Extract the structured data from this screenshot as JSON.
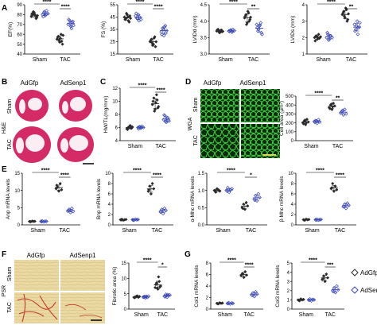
{
  "figure": {
    "colors": {
      "adgfp": "#2b2b2b",
      "adsenp1": "#3b48b8",
      "he_stain": "#d6336c",
      "wga_stain": "#2ca82c",
      "psr_bg": "#e9d9a6",
      "psr_fiber": "#c0392b"
    },
    "legend": [
      {
        "label": "AdGfp",
        "color": "#2b2b2b"
      },
      {
        "label": "AdSenp1",
        "color": "#3b48b8"
      }
    ],
    "panels": {
      "A": "A",
      "B": "B",
      "C": "C",
      "D": "D",
      "E": "E",
      "F": "F",
      "G": "G"
    },
    "micrographs": {
      "col_gfp": "AdGfp",
      "col_senp1": "AdSenp1",
      "row_sham": "Sham",
      "row_tac": "TAC",
      "stain_he": "H&E",
      "stain_wga": "WGA",
      "stain_psr": "PSR"
    },
    "group_labels": [
      "Sham",
      "TAC"
    ]
  },
  "chart_data": [
    {
      "id": "ef",
      "panel": "A",
      "type": "scatter",
      "ylabel": "EF(%)",
      "yticks": [
        "40",
        "50",
        "60",
        "70",
        "80",
        "90"
      ],
      "ylim": [
        40,
        90
      ],
      "groups": [
        "Sham-AdGfp",
        "Sham-AdSenp1",
        "TAC-AdGfp",
        "TAC-AdSenp1"
      ],
      "values": [
        [
          78,
          80,
          82,
          79,
          77,
          81,
          83,
          80,
          76,
          79
        ],
        [
          80,
          82,
          79,
          84,
          81,
          78,
          83,
          80
        ],
        [
          55,
          58,
          52,
          60,
          50,
          57,
          54,
          56,
          53,
          59
        ],
        [
          70,
          74,
          68,
          72,
          69,
          75,
          71,
          66,
          73
        ]
      ],
      "sig": [
        "****",
        "****"
      ]
    },
    {
      "id": "fs",
      "panel": "A",
      "type": "scatter",
      "ylabel": "FS (%)",
      "yticks": [
        "15",
        "25",
        "35",
        "45",
        "55"
      ],
      "ylim": [
        15,
        55
      ],
      "groups": [
        "Sham-AdGfp",
        "Sham-AdSenp1",
        "TAC-AdGfp",
        "TAC-AdSenp1"
      ],
      "values": [
        [
          45,
          44,
          47,
          42,
          46,
          43,
          48,
          45,
          41,
          44
        ],
        [
          46,
          44,
          47,
          45,
          43,
          48,
          44,
          42
        ],
        [
          25,
          27,
          22,
          28,
          21,
          26,
          24,
          23,
          29,
          25
        ],
        [
          33,
          36,
          30,
          38,
          34,
          31,
          35,
          37,
          32
        ]
      ],
      "sig": [
        "****",
        "****"
      ]
    },
    {
      "id": "lvidd",
      "panel": "A",
      "type": "scatter",
      "ylabel": "LVIDd (mm)",
      "yticks": [
        "3.0",
        "3.5",
        "4.0",
        "4.5"
      ],
      "ylim": [
        3.0,
        4.5
      ],
      "groups": [
        "Sham-AdGfp",
        "Sham-AdSenp1",
        "TAC-AdGfp",
        "TAC-AdSenp1"
      ],
      "values": [
        [
          3.7,
          3.75,
          3.65,
          3.72,
          3.68,
          3.74,
          3.71,
          3.66,
          3.73,
          3.69
        ],
        [
          3.7,
          3.72,
          3.68,
          3.75,
          3.71,
          3.69,
          3.73,
          3.67
        ],
        [
          4.1,
          4.2,
          3.95,
          4.25,
          4.05,
          4.15,
          3.9,
          4.3,
          4.0,
          4.12
        ],
        [
          3.9,
          3.7,
          3.85,
          3.95,
          3.6,
          3.8,
          3.75,
          3.88,
          3.65
        ]
      ],
      "sig": [
        "****",
        "**"
      ]
    },
    {
      "id": "lvids",
      "panel": "A",
      "type": "scatter",
      "ylabel": "LVIDs (mm)",
      "yticks": [
        "1",
        "2",
        "3",
        "4"
      ],
      "ylim": [
        1,
        4
      ],
      "groups": [
        "Sham-AdGfp",
        "Sham-AdSenp1",
        "TAC-AdGfp",
        "TAC-AdSenp1"
      ],
      "values": [
        [
          2.0,
          2.1,
          1.9,
          2.2,
          2.0,
          1.8,
          2.1,
          2.0,
          1.95,
          2.05
        ],
        [
          2.0,
          2.2,
          1.9,
          2.1,
          2.0,
          2.3,
          1.85,
          2.1
        ],
        [
          3.4,
          3.6,
          3.2,
          3.7,
          3.1,
          3.5,
          3.3,
          3.8,
          3.0,
          3.45
        ],
        [
          2.8,
          2.5,
          3.0,
          2.6,
          2.9,
          2.4,
          2.7,
          2.2,
          2.65
        ]
      ],
      "sig": [
        "****",
        "**"
      ]
    },
    {
      "id": "hwtl",
      "panel": "C",
      "type": "scatter",
      "ylabel": "HW/TL(mg/mm)",
      "yticks": [
        "4",
        "6",
        "8",
        "10",
        "12"
      ],
      "ylim": [
        4,
        12
      ],
      "groups": [
        "Sham-AdGfp",
        "Sham-AdSenp1",
        "TAC-AdGfp",
        "TAC-AdSenp1"
      ],
      "values": [
        [
          5.8,
          6.0,
          6.2,
          5.9,
          6.1,
          5.7,
          6.0,
          6.3,
          5.9
        ],
        [
          6.0,
          6.1,
          5.9,
          6.2,
          6.0,
          5.8,
          6.1,
          6.0
        ],
        [
          9.5,
          10.5,
          8.8,
          11.0,
          9.0,
          10.0,
          8.5,
          9.8,
          10.2,
          9.2
        ],
        [
          7.2,
          7.8,
          6.8,
          7.5,
          7.0,
          7.9,
          6.9,
          7.4,
          7.1
        ]
      ],
      "sig": [
        "****",
        "****"
      ]
    },
    {
      "id": "cellarea",
      "panel": "D",
      "type": "scatter",
      "ylabel": "Cell area (µm²)",
      "yticks": [
        "0",
        "100",
        "200",
        "300",
        "400",
        "500"
      ],
      "ylim": [
        0,
        500
      ],
      "groups": [
        "Sham-AdGfp",
        "Sham-AdSenp1",
        "TAC-AdGfp",
        "TAC-AdSenp1"
      ],
      "values": [
        [
          200,
          220,
          180,
          240,
          210,
          190,
          230,
          205
        ],
        [
          215,
          225,
          195,
          235,
          210,
          205,
          220
        ],
        [
          370,
          400,
          350,
          420,
          390,
          360,
          410,
          380
        ],
        [
          310,
          330,
          290,
          350,
          300,
          320,
          340
        ]
      ],
      "sig": [
        "****",
        "**"
      ]
    },
    {
      "id": "anp",
      "panel": "E",
      "type": "scatter",
      "ylabel": "Anp mRNA levels",
      "yticks": [
        "0",
        "5",
        "10",
        "15"
      ],
      "ylim": [
        0,
        15
      ],
      "groups": [
        "Sham-AdGfp",
        "Sham-AdSenp1",
        "TAC-AdGfp",
        "TAC-AdSenp1"
      ],
      "values": [
        [
          1.0,
          0.9,
          1.1,
          1.0,
          1.05,
          0.95
        ],
        [
          1.0,
          1.1,
          0.9,
          1.05,
          1.0,
          0.95
        ],
        [
          10.5,
          11.0,
          9.8,
          12.0,
          10.2,
          11.5
        ],
        [
          4.0,
          4.5,
          3.6,
          4.8,
          3.9,
          4.2
        ]
      ],
      "sig": [
        "****",
        "****"
      ]
    },
    {
      "id": "bnp",
      "panel": "E",
      "type": "scatter",
      "ylabel": "Bnp mRNA levels",
      "yticks": [
        "0",
        "2",
        "4",
        "6",
        "8",
        "10"
      ],
      "ylim": [
        0,
        10
      ],
      "groups": [
        "Sham-AdGfp",
        "Sham-AdSenp1",
        "TAC-AdGfp",
        "TAC-AdSenp1"
      ],
      "values": [
        [
          1.0,
          1.1,
          0.9,
          1.0,
          1.05,
          0.95
        ],
        [
          1.0,
          0.9,
          1.1,
          1.0,
          1.05,
          0.95
        ],
        [
          6.5,
          7.5,
          6.0,
          8.0,
          7.0,
          6.8
        ],
        [
          2.5,
          3.0,
          2.2,
          3.2,
          2.8,
          2.6
        ]
      ],
      "sig": [
        "****",
        "****"
      ]
    },
    {
      "id": "amhc",
      "panel": "E",
      "type": "scatter",
      "ylabel": "α-Mhc mRNA levels",
      "yticks": [
        "0.0",
        "0.5",
        "1.0",
        "1.5"
      ],
      "ylim": [
        0,
        1.5
      ],
      "groups": [
        "Sham-AdGfp",
        "Sham-AdSenp1",
        "TAC-AdGfp",
        "TAC-AdSenp1"
      ],
      "values": [
        [
          1.0,
          0.95,
          1.05,
          1.02,
          0.98,
          1.0
        ],
        [
          1.0,
          1.08,
          0.95,
          1.02,
          1.05,
          0.98
        ],
        [
          0.5,
          0.6,
          0.45,
          0.65,
          0.55,
          0.48
        ],
        [
          0.75,
          0.85,
          0.7,
          0.9,
          0.8,
          0.72
        ]
      ],
      "sig": [
        "****",
        "*"
      ]
    },
    {
      "id": "bmhc",
      "panel": "E",
      "type": "scatter",
      "ylabel": "β-Mhc mRNA levels",
      "yticks": [
        "0",
        "2",
        "4",
        "6",
        "8",
        "10"
      ],
      "ylim": [
        0,
        10
      ],
      "groups": [
        "Sham-AdGfp",
        "Sham-AdSenp1",
        "TAC-AdGfp",
        "TAC-AdSenp1"
      ],
      "values": [
        [
          1.0,
          0.9,
          1.1,
          1.0,
          1.05,
          0.95
        ],
        [
          1.0,
          1.1,
          0.9,
          1.0,
          1.05,
          0.95
        ],
        [
          7.0,
          8.0,
          6.5,
          7.5,
          6.8,
          7.2
        ],
        [
          3.5,
          4.0,
          3.2,
          4.2,
          3.8,
          3.6
        ]
      ],
      "sig": [
        "****",
        "****"
      ]
    },
    {
      "id": "fibrotic",
      "panel": "F",
      "type": "scatter",
      "ylabel": "Fibrotic area (%)",
      "yticks": [
        "0",
        "5",
        "10",
        "15"
      ],
      "ylim": [
        0,
        15
      ],
      "groups": [
        "Sham-AdGfp",
        "Sham-AdSenp1",
        "TAC-AdGfp",
        "TAC-AdSenp1"
      ],
      "values": [
        [
          3.8,
          4.0,
          4.2,
          3.9,
          4.1,
          3.7,
          4.0,
          4.3,
          3.9
        ],
        [
          3.9,
          4.1,
          4.0,
          3.8,
          4.2,
          4.0,
          3.7,
          4.1
        ],
        [
          7.0,
          8.5,
          6.5,
          9.0,
          7.5,
          8.0,
          6.8,
          10.5,
          7.2
        ],
        [
          4.2,
          4.8,
          3.9,
          4.5,
          4.6,
          4.0,
          4.4,
          4.7
        ]
      ],
      "sig": [
        "****",
        "*"
      ]
    },
    {
      "id": "col1",
      "panel": "G",
      "type": "scatter",
      "ylabel": "Col1 mRNA levels",
      "yticks": [
        "0",
        "2",
        "4",
        "6",
        "8"
      ],
      "ylim": [
        0,
        8
      ],
      "groups": [
        "Sham-AdGfp",
        "Sham-AdSenp1",
        "TAC-AdGfp",
        "TAC-AdSenp1"
      ],
      "values": [
        [
          1.0,
          0.9,
          1.1,
          1.0,
          1.05,
          0.95
        ],
        [
          1.0,
          1.1,
          0.9,
          1.05,
          1.0,
          0.95
        ],
        [
          5.8,
          6.2,
          5.5,
          6.5,
          5.9,
          6.0
        ],
        [
          2.5,
          2.8,
          2.2,
          3.0,
          2.6,
          2.4
        ]
      ],
      "sig": [
        "****",
        "****"
      ]
    },
    {
      "id": "col3",
      "panel": "G",
      "type": "scatter",
      "ylabel": "Col3 mRNA levels",
      "yticks": [
        "0",
        "1",
        "2",
        "3",
        "4",
        "5"
      ],
      "ylim": [
        0,
        5
      ],
      "groups": [
        "Sham-AdGfp",
        "Sham-AdSenp1",
        "TAC-AdGfp",
        "TAC-AdSenp1"
      ],
      "values": [
        [
          1.0,
          0.9,
          1.1,
          1.0,
          1.05,
          0.95
        ],
        [
          1.0,
          1.1,
          0.9,
          1.05,
          1.0,
          0.95
        ],
        [
          3.2,
          3.6,
          3.0,
          3.8,
          3.4,
          3.3
        ],
        [
          2.0,
          2.3,
          1.8,
          2.5,
          2.1,
          1.9
        ]
      ],
      "sig": [
        "****",
        "***"
      ]
    }
  ]
}
